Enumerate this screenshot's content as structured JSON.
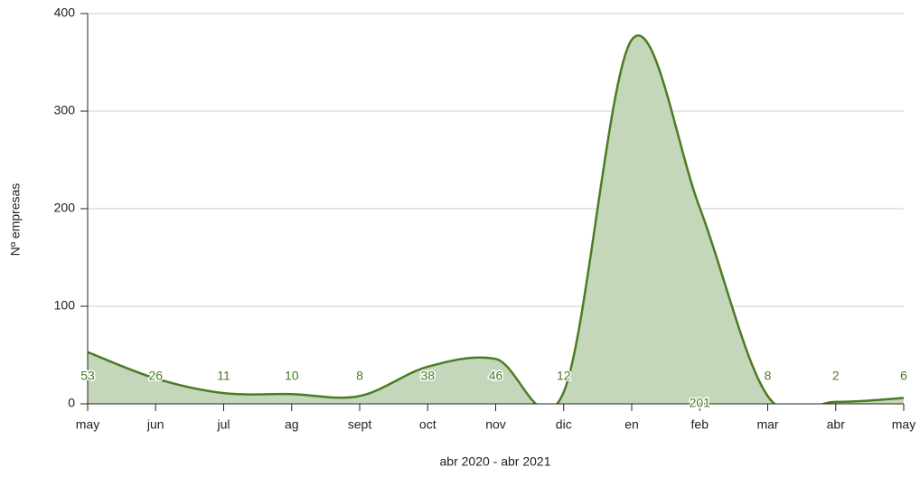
{
  "chart_data": {
    "type": "area",
    "xlabel": "abr 2020 - abr 2021",
    "ylabel": "Nº empresas",
    "categories": [
      "may",
      "jun",
      "jul",
      "ag",
      "sept",
      "oct",
      "nov",
      "dic",
      "en",
      "feb",
      "mar",
      "abr",
      "may"
    ],
    "values": [
      53,
      26,
      11,
      10,
      8,
      38,
      46,
      12,
      373,
      201,
      8,
      2,
      6
    ],
    "value_labels": [
      "53",
      "26",
      "11",
      "10",
      "8",
      "38",
      "46",
      "12",
      null,
      "201",
      "8",
      "2",
      "6"
    ],
    "color": "#4a7c23",
    "fill": "#c4d7bb",
    "ylim": [
      0,
      400
    ],
    "yticks": [
      0,
      100,
      200,
      300,
      400
    ],
    "grid": true
  }
}
